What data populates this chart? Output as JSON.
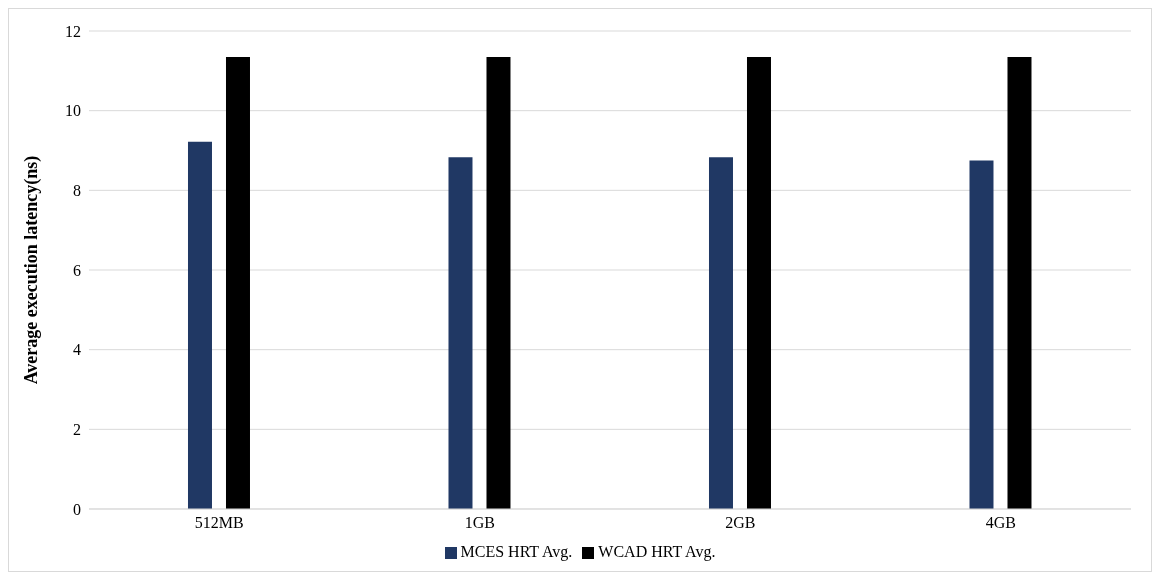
{
  "chart_data": {
    "type": "bar",
    "ylabel": "Average execution latency(ns)",
    "categories": [
      "512MB",
      "1GB",
      "2GB",
      "4GB"
    ],
    "series": [
      {
        "name": "MCES HRT Avg.",
        "color": "#203864",
        "values": [
          9.22,
          8.83,
          8.83,
          8.75
        ]
      },
      {
        "name": "WCAD HRT Avg.",
        "color": "#000000",
        "values": [
          11.35,
          11.35,
          11.35,
          11.35
        ]
      }
    ],
    "ylim": [
      0,
      12
    ],
    "yticks": [
      0,
      2,
      4,
      6,
      8,
      10,
      12
    ],
    "grid": "y",
    "legend": "bottom"
  }
}
